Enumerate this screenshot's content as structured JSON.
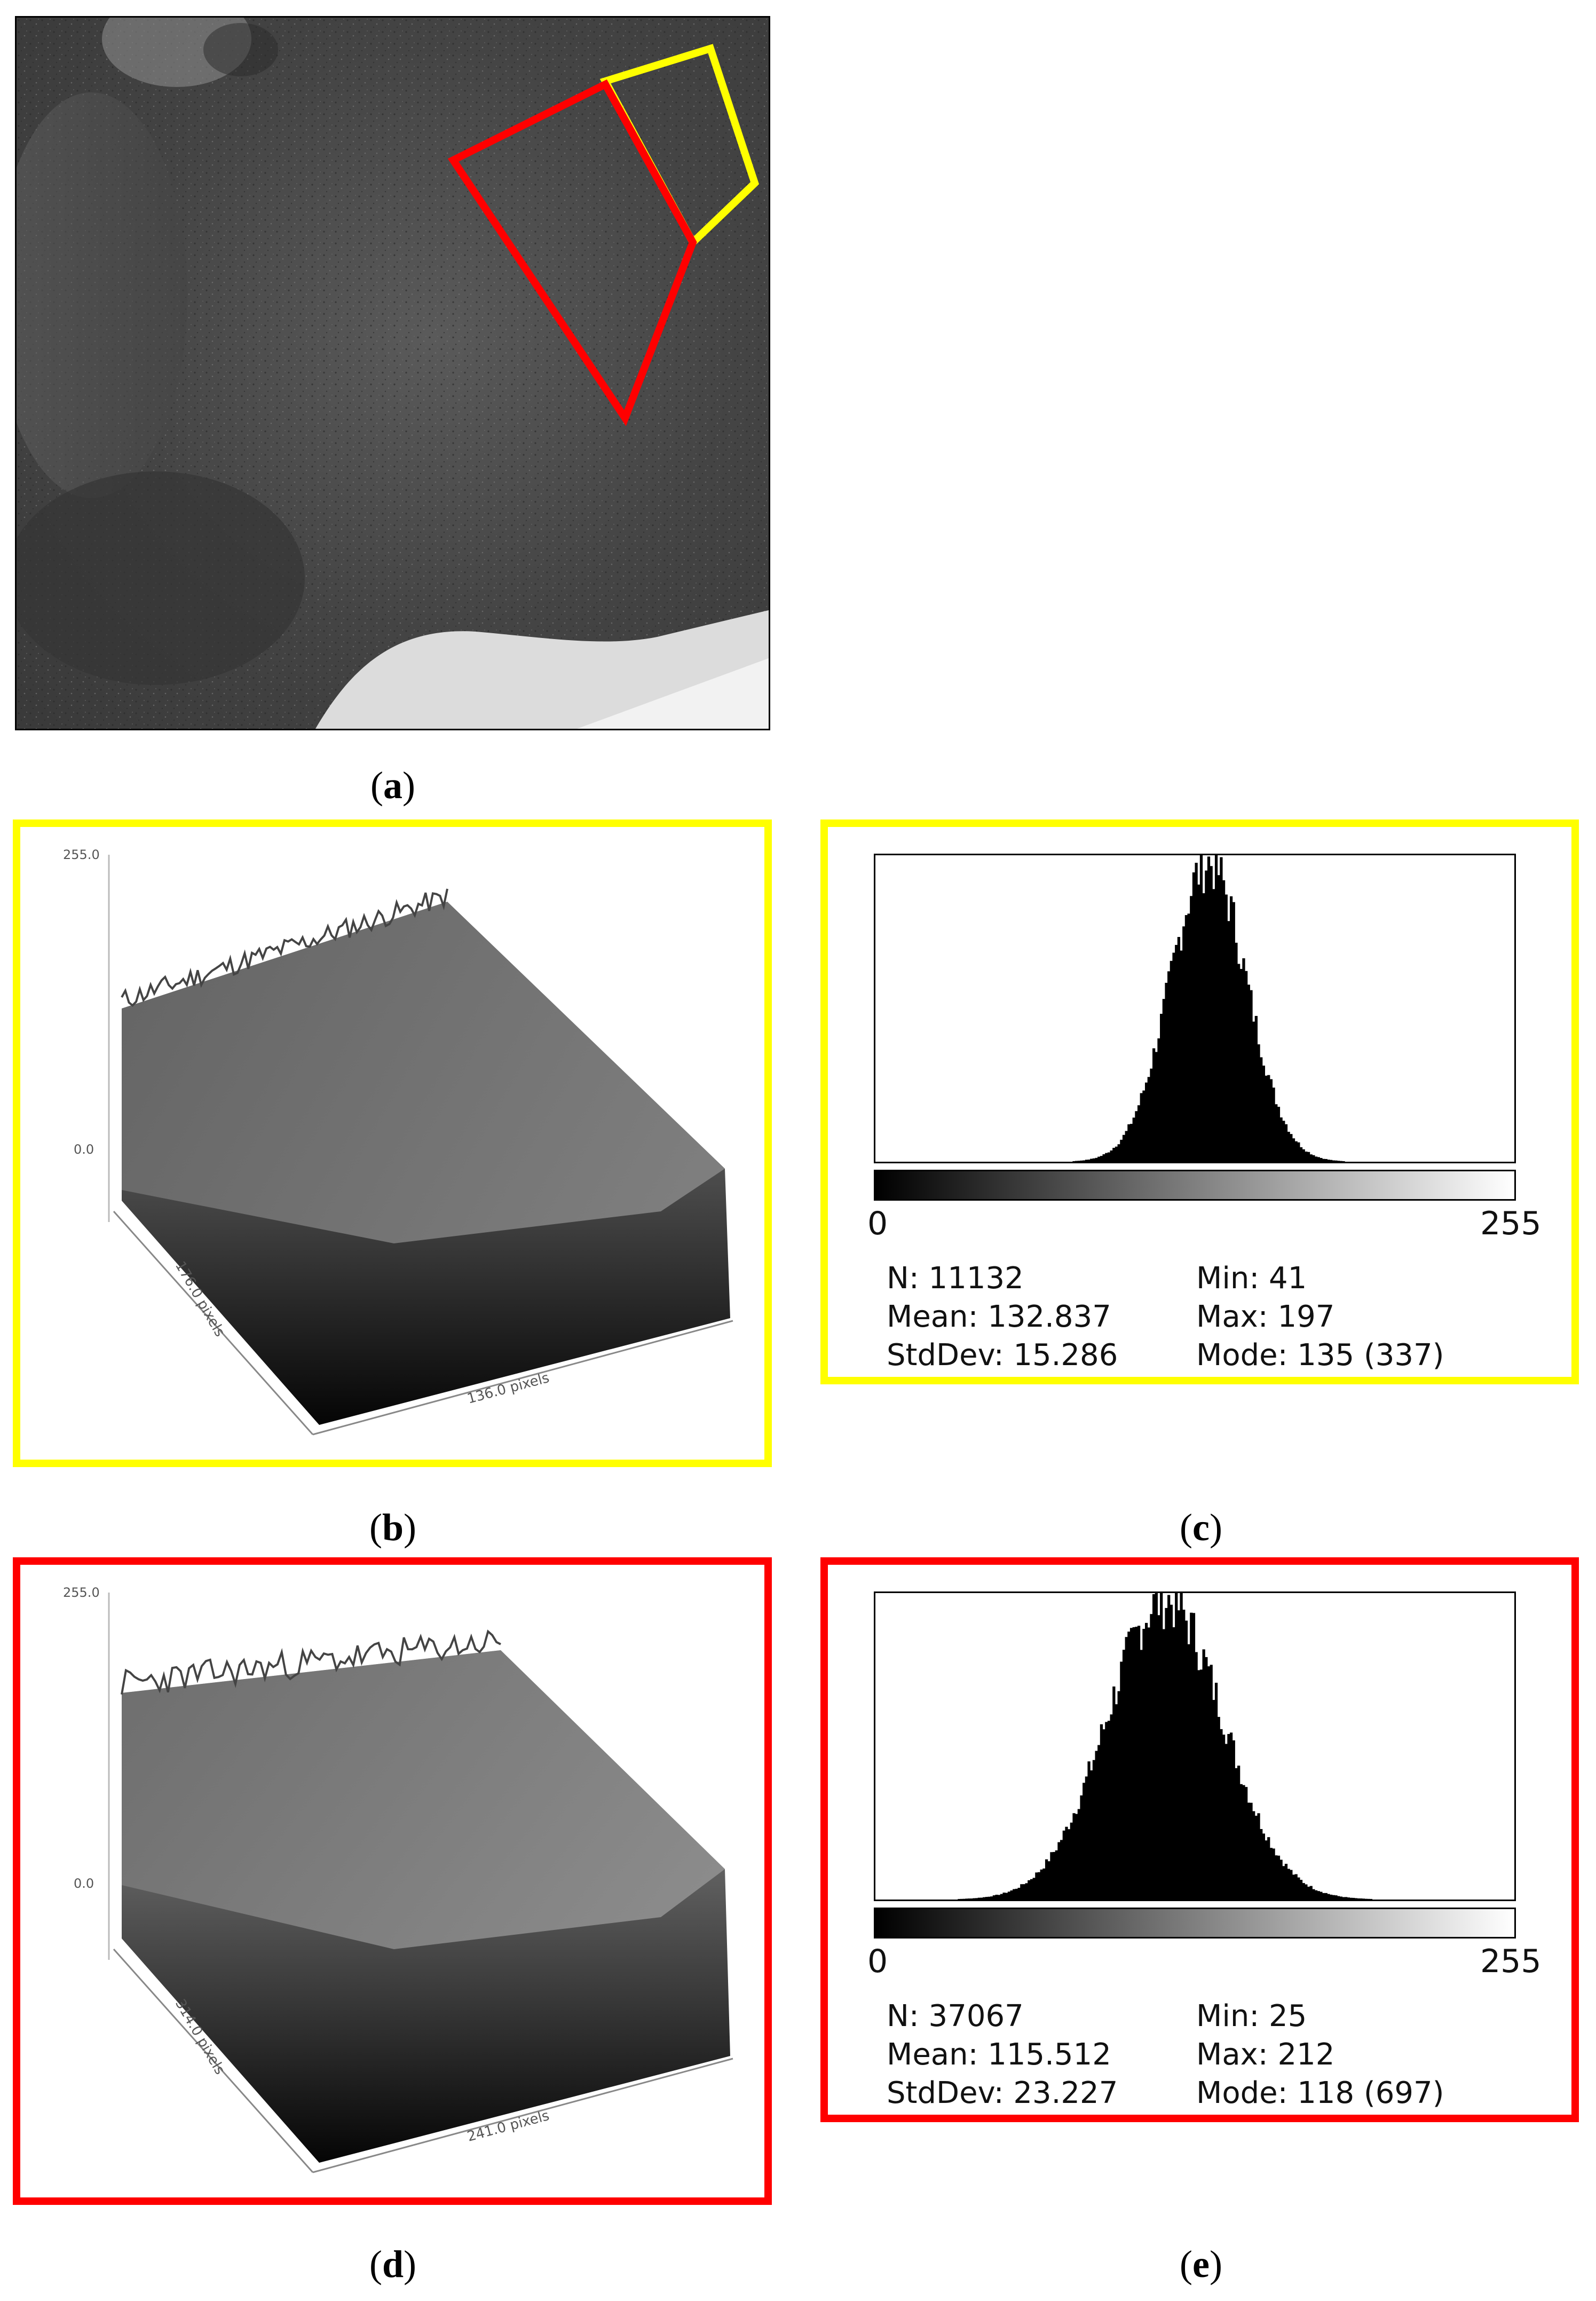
{
  "captions": {
    "a": "a",
    "b": "b",
    "c": "c",
    "d": "d",
    "e": "e"
  },
  "colors": {
    "yellow": "#ffff00",
    "red": "#ff0000"
  },
  "plot_yellow": {
    "z_max_label": "255.0",
    "z_min_label": "0.0",
    "y_axis_label": "176.0 pixels",
    "x_axis_label": "136.0 pixels"
  },
  "plot_red": {
    "z_max_label": "255.0",
    "z_min_label": "0.0",
    "y_axis_label": "314.0 pixels",
    "x_axis_label": "241.0 pixels"
  },
  "hist_yellow": {
    "axis_min": "0",
    "axis_max": "255",
    "n_label": "N: 11132",
    "mean_label": "Mean: 132.837",
    "stddev_label": "StdDev: 15.286",
    "min_label": "Min: 41",
    "max_label": "Max: 197",
    "mode_label": "Mode: 135 (337)",
    "mean": 132.837,
    "stddev": 15.286,
    "min": 41,
    "max": 197
  },
  "hist_red": {
    "axis_min": "0",
    "axis_max": "255",
    "n_label": "N: 37067",
    "mean_label": "Mean: 115.512",
    "stddev_label": "StdDev: 23.227",
    "min_label": "Min: 25",
    "max_label": "Max: 212",
    "mode_label": "Mode: 118 (697)",
    "mean": 115.512,
    "stddev": 23.227,
    "min": 25,
    "max": 212
  }
}
